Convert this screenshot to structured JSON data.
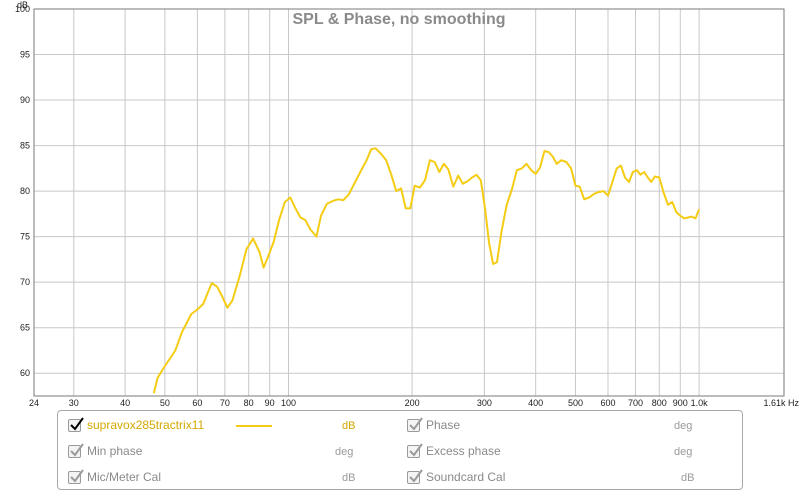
{
  "chart_data": {
    "type": "line",
    "title": "SPL & Phase, no smoothing",
    "ylabel": "dB",
    "xlabel": "Hz",
    "x_scale": "log",
    "xlim": [
      24,
      1610
    ],
    "ylim": [
      57.5,
      100
    ],
    "y_ticks": [
      60,
      65,
      70,
      75,
      80,
      85,
      90,
      95,
      100
    ],
    "x_ticks": [
      {
        "value": 24,
        "label": "24"
      },
      {
        "value": 30,
        "label": "30"
      },
      {
        "value": 40,
        "label": "40"
      },
      {
        "value": 50,
        "label": "50"
      },
      {
        "value": 60,
        "label": "60"
      },
      {
        "value": 70,
        "label": "70"
      },
      {
        "value": 80,
        "label": "80"
      },
      {
        "value": 90,
        "label": "90"
      },
      {
        "value": 100,
        "label": "100"
      },
      {
        "value": 200,
        "label": "200"
      },
      {
        "value": 300,
        "label": "300"
      },
      {
        "value": 400,
        "label": "400"
      },
      {
        "value": 500,
        "label": "500"
      },
      {
        "value": 600,
        "label": "600"
      },
      {
        "value": 700,
        "label": "700"
      },
      {
        "value": 800,
        "label": "800"
      },
      {
        "value": 900,
        "label": "900"
      },
      {
        "value": 1000,
        "label": "1.0k"
      },
      {
        "value": 1610,
        "label": "1.61k Hz"
      }
    ],
    "grid": true,
    "series": [
      {
        "name": "supravox285tractrix11",
        "color": "#f5cc14",
        "x": [
          47,
          48,
          50,
          53,
          55,
          58,
          60,
          62,
          65,
          67,
          69,
          71,
          73,
          76,
          79,
          82,
          85,
          87,
          89,
          92,
          95,
          98,
          101,
          104,
          107,
          110,
          113,
          117,
          120,
          124,
          128,
          132,
          136,
          140,
          145,
          150,
          155,
          159,
          163,
          168,
          173,
          178,
          183,
          188,
          193,
          198,
          203,
          209,
          215,
          221,
          227,
          233,
          239,
          245,
          252,
          259,
          266,
          273,
          280,
          287,
          294,
          301,
          308,
          315,
          322,
          330,
          340,
          350,
          360,
          370,
          380,
          390,
          400,
          410,
          420,
          430,
          440,
          450,
          462,
          475,
          488,
          500,
          512,
          525,
          540,
          555,
          570,
          585,
          600,
          615,
          630,
          645,
          660,
          675,
          690,
          705,
          720,
          735,
          750,
          765,
          780,
          800,
          820,
          840,
          860,
          880,
          900,
          920,
          940,
          960,
          980,
          1000
        ],
        "y": [
          57.8,
          59.5,
          60.8,
          62.5,
          64.5,
          66.5,
          67.0,
          67.6,
          69.9,
          69.5,
          68.4,
          67.2,
          68.0,
          70.6,
          73.6,
          74.8,
          73.3,
          71.6,
          72.7,
          74.4,
          76.9,
          78.8,
          79.3,
          78.1,
          77.1,
          76.8,
          75.8,
          75.0,
          77.3,
          78.6,
          78.9,
          79.1,
          79.0,
          79.6,
          80.9,
          82.2,
          83.4,
          84.6,
          84.7,
          84.1,
          83.4,
          81.8,
          80.0,
          80.3,
          78.1,
          78.1,
          80.6,
          80.4,
          81.2,
          83.4,
          83.2,
          82.1,
          83.0,
          82.4,
          80.5,
          81.7,
          80.8,
          81.1,
          81.5,
          81.8,
          81.2,
          78.1,
          74.3,
          72.0,
          72.2,
          75.5,
          78.5,
          80.2,
          82.3,
          82.5,
          83.0,
          82.3,
          81.9,
          82.6,
          84.4,
          84.3,
          83.8,
          83.0,
          83.4,
          83.2,
          82.5,
          80.6,
          80.5,
          79.1,
          79.3,
          79.7,
          79.9,
          80.0,
          79.5,
          81.0,
          82.5,
          82.8,
          81.5,
          81.0,
          82.1,
          82.3,
          81.8,
          82.1,
          81.5,
          81.0,
          81.6,
          81.5,
          79.8,
          78.5,
          78.8,
          77.7,
          77.3,
          77.0,
          77.1,
          77.2,
          77.0,
          78.0
        ]
      }
    ]
  },
  "legend": {
    "items": [
      {
        "label": "supravox285tractrix11",
        "unit": "dB",
        "checked": true,
        "active": true
      },
      {
        "label": "Phase",
        "unit": "deg",
        "checked": true,
        "active": false
      },
      {
        "label": "Min phase",
        "unit": "deg",
        "checked": true,
        "active": false
      },
      {
        "label": "Excess phase",
        "unit": "deg",
        "checked": true,
        "active": false
      },
      {
        "label": "Mic/Meter Cal",
        "unit": "dB",
        "checked": true,
        "active": false
      },
      {
        "label": "Soundcard Cal",
        "unit": "dB",
        "checked": true,
        "active": false
      }
    ]
  }
}
